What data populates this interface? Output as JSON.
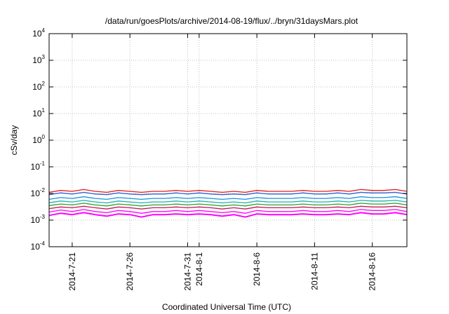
{
  "chart_data": {
    "type": "line",
    "title": "/data/run/goesPlots/archive/2014-08-19/flux/../bryn/31daysMars.plot",
    "xlabel": "Coordinated Universal Time (UTC)",
    "ylabel": "cSv/day",
    "y_scale": "log",
    "ylim": [
      0.0001,
      10000
    ],
    "xlim": [
      "2014-07-19",
      "2014-08-19"
    ],
    "grid": true,
    "y_ticks": [
      {
        "value": 0.0001,
        "base": "10",
        "exp": "-4"
      },
      {
        "value": 0.001,
        "base": "10",
        "exp": "-3"
      },
      {
        "value": 0.01,
        "base": "10",
        "exp": "-2"
      },
      {
        "value": 0.1,
        "base": "10",
        "exp": "-1"
      },
      {
        "value": 1,
        "base": "10",
        "exp": "0"
      },
      {
        "value": 10,
        "base": "10",
        "exp": "1"
      },
      {
        "value": 100,
        "base": "10",
        "exp": "2"
      },
      {
        "value": 1000,
        "base": "10",
        "exp": "3"
      },
      {
        "value": 10000,
        "base": "10",
        "exp": "4"
      }
    ],
    "x_ticks": [
      {
        "value": "2014-07-21",
        "label": "2014-7-21"
      },
      {
        "value": "2014-07-26",
        "label": "2014-7-26"
      },
      {
        "value": "2014-07-31",
        "label": "2014-7-31"
      },
      {
        "value": "2014-08-01",
        "label": "2014-8-1"
      },
      {
        "value": "2014-08-06",
        "label": "2014-8-6"
      },
      {
        "value": "2014-08-11",
        "label": "2014-8-11"
      },
      {
        "value": "2014-08-16",
        "label": "2014-8-16"
      }
    ],
    "series": [
      {
        "color": "#e31a1c",
        "values": [
          0.011,
          0.013,
          0.012,
          0.014,
          0.012,
          0.011,
          0.013,
          0.012,
          0.011,
          0.012,
          0.012,
          0.013,
          0.012,
          0.013,
          0.012,
          0.011,
          0.012,
          0.011,
          0.013,
          0.012,
          0.012,
          0.012,
          0.013,
          0.012,
          0.012,
          0.013,
          0.012,
          0.014,
          0.013,
          0.013,
          0.014,
          0.012
        ]
      },
      {
        "color": "#2f5fd8",
        "values": [
          0.009,
          0.0105,
          0.0095,
          0.011,
          0.0095,
          0.009,
          0.0105,
          0.0095,
          0.009,
          0.0095,
          0.0095,
          0.0105,
          0.0095,
          0.0105,
          0.0095,
          0.009,
          0.0095,
          0.009,
          0.0105,
          0.0095,
          0.0095,
          0.0095,
          0.0105,
          0.0095,
          0.0095,
          0.0105,
          0.0095,
          0.011,
          0.0105,
          0.0105,
          0.011,
          0.0095
        ]
      },
      {
        "color": "#1b8fe0",
        "values": [
          0.006,
          0.007,
          0.0065,
          0.0075,
          0.0065,
          0.006,
          0.007,
          0.0065,
          0.006,
          0.0065,
          0.0065,
          0.007,
          0.0065,
          0.007,
          0.0065,
          0.006,
          0.0065,
          0.006,
          0.007,
          0.0065,
          0.0065,
          0.0065,
          0.007,
          0.0065,
          0.0065,
          0.007,
          0.0065,
          0.0075,
          0.007,
          0.007,
          0.0075,
          0.0065
        ]
      },
      {
        "color": "#20b2aa",
        "values": [
          0.0045,
          0.0052,
          0.0048,
          0.0055,
          0.0048,
          0.0044,
          0.0052,
          0.0048,
          0.0044,
          0.0048,
          0.0048,
          0.0052,
          0.0048,
          0.0052,
          0.0048,
          0.0044,
          0.0048,
          0.0044,
          0.0052,
          0.0048,
          0.0048,
          0.0048,
          0.0052,
          0.0048,
          0.0048,
          0.0052,
          0.0048,
          0.0055,
          0.0052,
          0.0052,
          0.0055,
          0.0048
        ]
      },
      {
        "color": "#2ca02c",
        "values": [
          0.0035,
          0.004,
          0.0037,
          0.0043,
          0.0037,
          0.0034,
          0.004,
          0.0037,
          0.0034,
          0.0037,
          0.0037,
          0.004,
          0.0037,
          0.004,
          0.0037,
          0.0034,
          0.0037,
          0.0034,
          0.004,
          0.0037,
          0.0037,
          0.0037,
          0.004,
          0.0037,
          0.0037,
          0.004,
          0.0037,
          0.0043,
          0.004,
          0.004,
          0.0043,
          0.0037
        ]
      },
      {
        "color": "#c2185b",
        "values": [
          0.0027,
          0.0031,
          0.0029,
          0.0033,
          0.0029,
          0.0026,
          0.0031,
          0.0029,
          0.0026,
          0.0029,
          0.0029,
          0.0031,
          0.0029,
          0.0031,
          0.0029,
          0.0026,
          0.0029,
          0.0026,
          0.0031,
          0.0029,
          0.0029,
          0.0029,
          0.0031,
          0.0029,
          0.0029,
          0.0031,
          0.0029,
          0.0033,
          0.0031,
          0.0031,
          0.0033,
          0.0029
        ]
      },
      {
        "color": "#ff00ff",
        "values": [
          0.002,
          0.0024,
          0.0021,
          0.0025,
          0.0021,
          0.0019,
          0.0023,
          0.0021,
          0.0018,
          0.0021,
          0.0021,
          0.0023,
          0.0021,
          0.0023,
          0.0021,
          0.0019,
          0.0021,
          0.0018,
          0.0023,
          0.0021,
          0.0021,
          0.0021,
          0.0023,
          0.0021,
          0.0021,
          0.0023,
          0.0021,
          0.0025,
          0.0023,
          0.0023,
          0.0025,
          0.0021
        ]
      },
      {
        "color": "#ff00ff",
        "values": [
          0.0015,
          0.0018,
          0.0016,
          0.0019,
          0.0016,
          0.0014,
          0.0017,
          0.0016,
          0.0013,
          0.0016,
          0.0016,
          0.0017,
          0.0016,
          0.0017,
          0.0016,
          0.0014,
          0.0016,
          0.0013,
          0.0017,
          0.0016,
          0.0016,
          0.0016,
          0.0017,
          0.0016,
          0.0016,
          0.0017,
          0.0016,
          0.0019,
          0.0017,
          0.0017,
          0.0019,
          0.0016
        ]
      }
    ]
  }
}
